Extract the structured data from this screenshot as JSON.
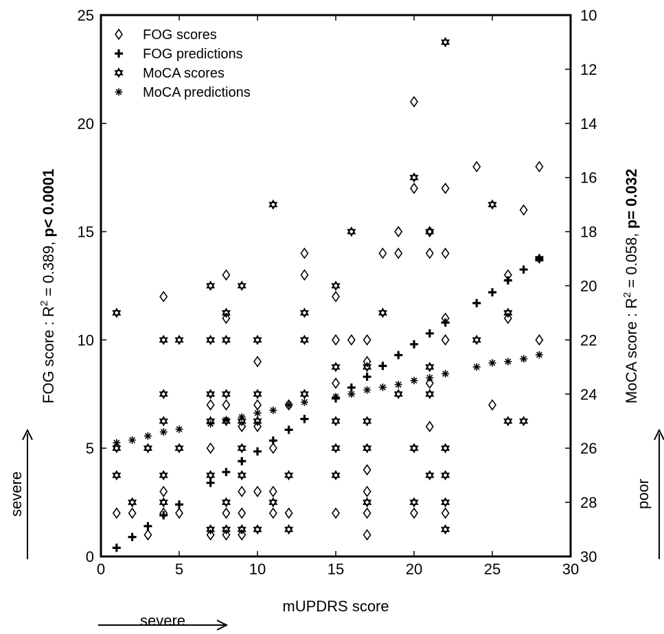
{
  "chart_data": {
    "type": "scatter",
    "xlabel": "mUPDRS score",
    "xlim": [
      0,
      30
    ],
    "xticks": [
      0,
      5,
      10,
      15,
      20,
      25,
      30
    ],
    "left_axis": {
      "label_prefix": "FOG score : R",
      "label_sup": "2",
      "label_mid": " = 0.389, ",
      "label_bold": "p< 0.0001",
      "ylim": [
        0,
        25
      ],
      "ticks": [
        0,
        5,
        10,
        15,
        20,
        25
      ]
    },
    "right_axis": {
      "label_prefix": "MoCA score : R",
      "label_sup": "2",
      "label_mid": " = 0.058, ",
      "label_bold": "p= 0.032",
      "ylim": [
        30,
        10
      ],
      "inverted": true,
      "ticks": [
        10,
        12,
        14,
        16,
        18,
        20,
        22,
        24,
        26,
        28,
        30
      ]
    },
    "annotations": {
      "x_severe": "severe",
      "left_severe": "severe",
      "right_poor": "poor"
    },
    "legend_position": "top-left",
    "series": [
      {
        "name": "FOG scores",
        "marker": "diamond",
        "axis": "left",
        "points": [
          [
            1,
            2
          ],
          [
            2,
            2
          ],
          [
            3,
            1
          ],
          [
            4,
            12
          ],
          [
            4,
            3
          ],
          [
            4,
            2
          ],
          [
            5,
            2
          ],
          [
            7,
            7
          ],
          [
            7,
            5
          ],
          [
            7,
            1
          ],
          [
            8,
            13
          ],
          [
            8,
            11
          ],
          [
            8,
            7
          ],
          [
            8,
            2
          ],
          [
            8,
            1
          ],
          [
            9,
            6
          ],
          [
            9,
            3
          ],
          [
            9,
            2
          ],
          [
            9,
            1
          ],
          [
            10,
            9
          ],
          [
            10,
            7
          ],
          [
            10,
            6
          ],
          [
            10,
            3
          ],
          [
            11,
            5
          ],
          [
            11,
            3
          ],
          [
            11,
            2
          ],
          [
            12,
            7
          ],
          [
            12,
            2
          ],
          [
            13,
            14
          ],
          [
            13,
            13
          ],
          [
            15,
            12
          ],
          [
            15,
            10
          ],
          [
            15,
            8
          ],
          [
            15,
            2
          ],
          [
            16,
            10
          ],
          [
            17,
            10
          ],
          [
            17,
            9
          ],
          [
            17,
            4
          ],
          [
            17,
            3
          ],
          [
            17,
            2
          ],
          [
            17,
            1
          ],
          [
            18,
            14
          ],
          [
            19,
            15
          ],
          [
            19,
            14
          ],
          [
            20,
            21
          ],
          [
            20,
            17
          ],
          [
            20,
            2
          ],
          [
            21,
            15
          ],
          [
            21,
            14
          ],
          [
            21,
            8
          ],
          [
            21,
            6
          ],
          [
            22,
            17
          ],
          [
            22,
            14
          ],
          [
            22,
            11
          ],
          [
            22,
            10
          ],
          [
            22,
            2
          ],
          [
            24,
            18
          ],
          [
            25,
            7
          ],
          [
            26,
            13
          ],
          [
            26,
            11
          ],
          [
            27,
            16
          ],
          [
            28,
            18
          ],
          [
            28,
            10
          ]
        ]
      },
      {
        "name": "FOG predictions",
        "marker": "plus",
        "axis": "left",
        "points": [
          [
            1,
            0.4
          ],
          [
            2,
            0.9
          ],
          [
            3,
            1.4
          ],
          [
            4,
            1.9
          ],
          [
            5,
            2.4
          ],
          [
            7,
            3.4
          ],
          [
            8,
            3.9
          ],
          [
            9,
            4.4
          ],
          [
            10,
            4.85
          ],
          [
            11,
            5.35
          ],
          [
            12,
            5.85
          ],
          [
            13,
            6.35
          ],
          [
            15,
            7.3
          ],
          [
            16,
            7.8
          ],
          [
            17,
            8.3
          ],
          [
            18,
            8.8
          ],
          [
            19,
            9.3
          ],
          [
            20,
            9.8
          ],
          [
            21,
            10.3
          ],
          [
            22,
            10.8
          ],
          [
            24,
            11.7
          ],
          [
            25,
            12.2
          ],
          [
            26,
            12.75
          ],
          [
            27,
            13.25
          ],
          [
            28,
            13.75
          ]
        ]
      },
      {
        "name": "MoCA scores",
        "marker": "star",
        "axis": "right",
        "points": [
          [
            1,
            21
          ],
          [
            1,
            26
          ],
          [
            1,
            27
          ],
          [
            2,
            28
          ],
          [
            3,
            26
          ],
          [
            4,
            22
          ],
          [
            4,
            24
          ],
          [
            4,
            25
          ],
          [
            4,
            27
          ],
          [
            4,
            28
          ],
          [
            5,
            22
          ],
          [
            5,
            26
          ],
          [
            7,
            20
          ],
          [
            7,
            22
          ],
          [
            7,
            24
          ],
          [
            7,
            25
          ],
          [
            7,
            27
          ],
          [
            7,
            29
          ],
          [
            8,
            21
          ],
          [
            8,
            22
          ],
          [
            8,
            24
          ],
          [
            8,
            25
          ],
          [
            8,
            28
          ],
          [
            8,
            29
          ],
          [
            9,
            20
          ],
          [
            9,
            25
          ],
          [
            9,
            26
          ],
          [
            9,
            27
          ],
          [
            9,
            29
          ],
          [
            10,
            22
          ],
          [
            10,
            24
          ],
          [
            10,
            25
          ],
          [
            10,
            29
          ],
          [
            11,
            17
          ],
          [
            11,
            28
          ],
          [
            12,
            27
          ],
          [
            12,
            29
          ],
          [
            13,
            21
          ],
          [
            13,
            22
          ],
          [
            13,
            24
          ],
          [
            15,
            20
          ],
          [
            15,
            23
          ],
          [
            15,
            25
          ],
          [
            15,
            26
          ],
          [
            15,
            27
          ],
          [
            16,
            18
          ],
          [
            17,
            23
          ],
          [
            17,
            25
          ],
          [
            17,
            26
          ],
          [
            17,
            28
          ],
          [
            18,
            21
          ],
          [
            19,
            24
          ],
          [
            20,
            16
          ],
          [
            20,
            26
          ],
          [
            20,
            28
          ],
          [
            21,
            18
          ],
          [
            21,
            23
          ],
          [
            21,
            24
          ],
          [
            21,
            27
          ],
          [
            22,
            11
          ],
          [
            22,
            26
          ],
          [
            22,
            27
          ],
          [
            22,
            28
          ],
          [
            22,
            29
          ],
          [
            24,
            22
          ],
          [
            25,
            17
          ],
          [
            26,
            21
          ],
          [
            26,
            25
          ],
          [
            27,
            25
          ],
          [
            28,
            19
          ]
        ]
      },
      {
        "name": "MoCA predictions",
        "marker": "asterisk",
        "axis": "right",
        "points": [
          [
            1,
            25.8
          ],
          [
            2,
            25.7
          ],
          [
            3,
            25.55
          ],
          [
            4,
            25.4
          ],
          [
            5,
            25.3
          ],
          [
            7,
            25.1
          ],
          [
            8,
            24.95
          ],
          [
            9,
            24.85
          ],
          [
            10,
            24.7
          ],
          [
            11,
            24.6
          ],
          [
            12,
            24.4
          ],
          [
            13,
            24.3
          ],
          [
            15,
            24.1
          ],
          [
            16,
            24.0
          ],
          [
            17,
            23.85
          ],
          [
            18,
            23.75
          ],
          [
            19,
            23.65
          ],
          [
            20,
            23.5
          ],
          [
            21,
            23.4
          ],
          [
            22,
            23.25
          ],
          [
            24,
            23.0
          ],
          [
            25,
            22.85
          ],
          [
            26,
            22.8
          ],
          [
            27,
            22.7
          ],
          [
            28,
            22.55
          ]
        ]
      }
    ]
  }
}
